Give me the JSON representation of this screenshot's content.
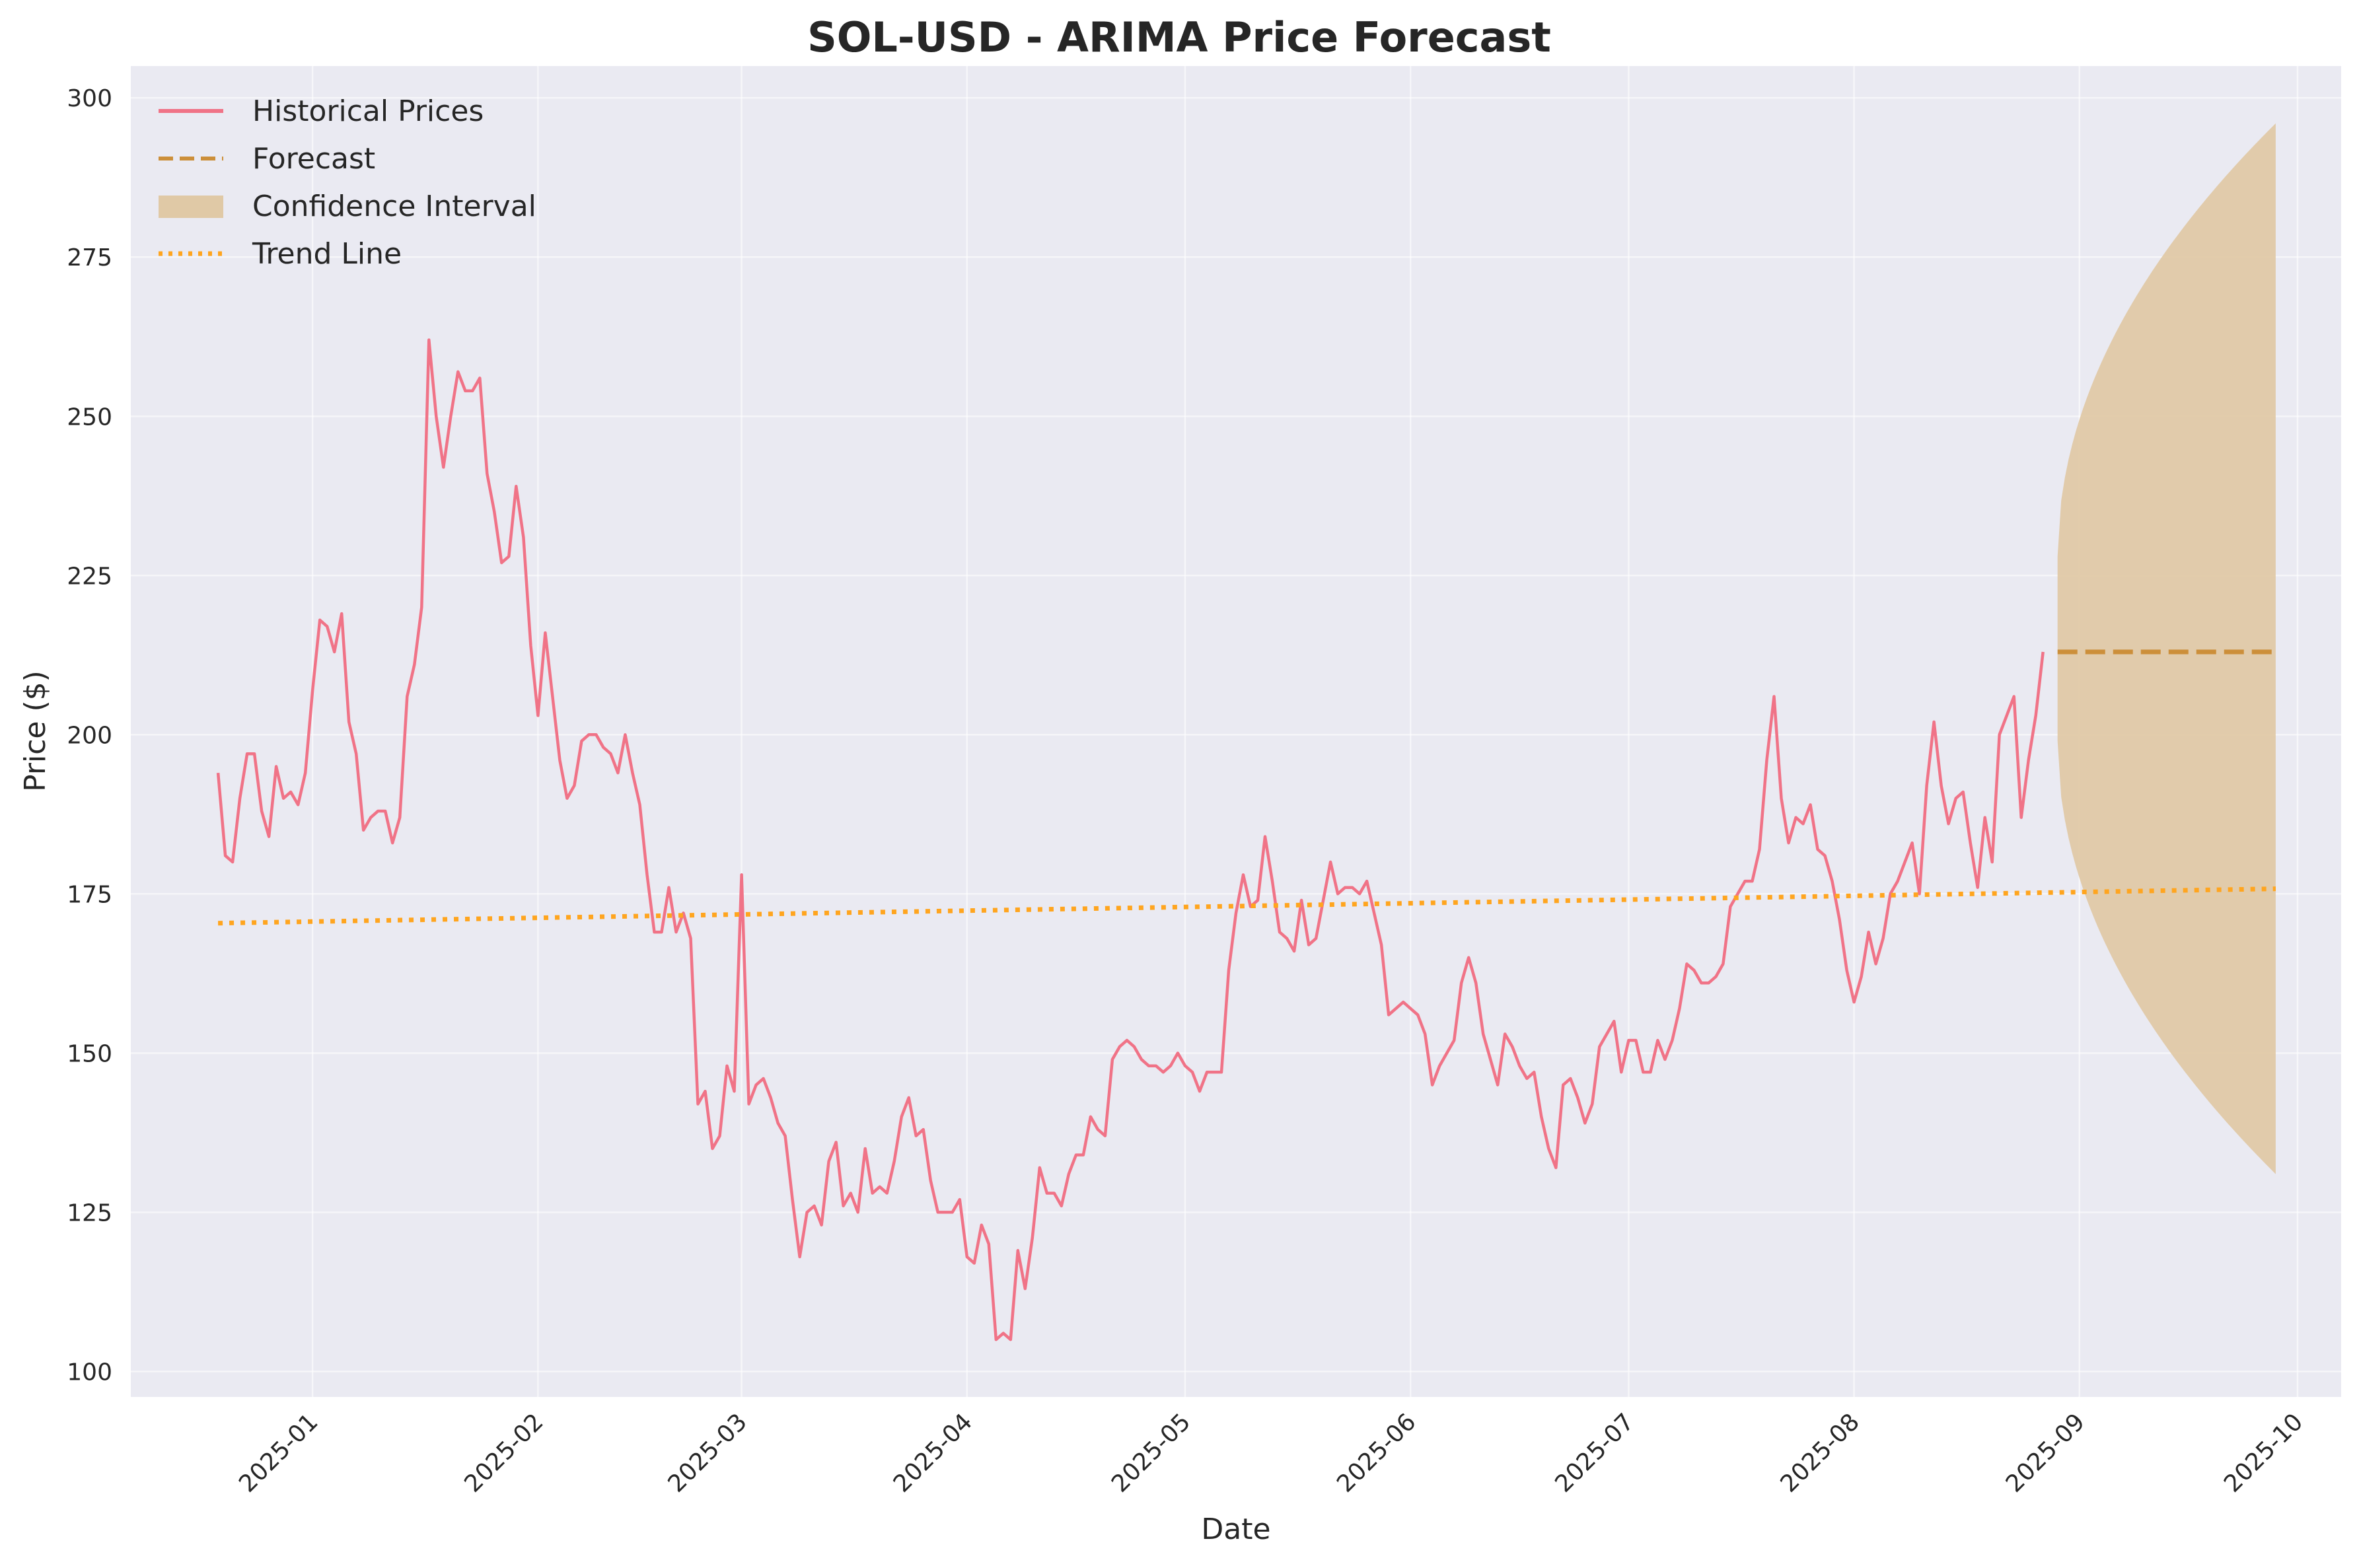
{
  "chart_data": {
    "type": "line",
    "title": "SOL-USD - ARIMA Price Forecast",
    "xlabel": "Date",
    "ylabel": "Price ($)",
    "xlim": [
      "2024-12-07",
      "2025-10-07"
    ],
    "ylim": [
      96,
      305
    ],
    "grid": true,
    "legend_placement": "top-left",
    "x_ticks": [
      "2025-01",
      "2025-02",
      "2025-03",
      "2025-04",
      "2025-05",
      "2025-06",
      "2025-07",
      "2025-08",
      "2025-09",
      "2025-10"
    ],
    "x_tick_dates": [
      "2025-01-01",
      "2025-02-01",
      "2025-03-01",
      "2025-04-01",
      "2025-05-01",
      "2025-06-01",
      "2025-07-01",
      "2025-08-01",
      "2025-09-01",
      "2025-10-01"
    ],
    "y_ticks": [
      100,
      125,
      150,
      175,
      200,
      225,
      250,
      275,
      300
    ],
    "colors": {
      "historical": "#f07387",
      "forecast": "#cc8f3a",
      "confidence": "#e0c9a6",
      "trend": "#ffa51f",
      "background": "#eaeaf2"
    },
    "legend": [
      {
        "label": "Historical Prices",
        "style": "solid-line",
        "color": "#f07387"
      },
      {
        "label": "Forecast",
        "style": "dashed-line",
        "color": "#cc8f3a"
      },
      {
        "label": "Confidence Interval",
        "style": "patch",
        "color": "#e0c9a6"
      },
      {
        "label": "Trend Line",
        "style": "dotted-line",
        "color": "#ffa51f"
      }
    ],
    "series": [
      {
        "name": "Historical Prices",
        "start_date": "2024-12-19",
        "values": [
          194,
          181,
          180,
          190,
          197,
          197,
          188,
          184,
          195,
          190,
          191,
          189,
          194,
          207,
          218,
          217,
          213,
          219,
          202,
          197,
          185,
          187,
          188,
          188,
          183,
          187,
          206,
          211,
          220,
          262,
          250,
          242,
          250,
          257,
          254,
          254,
          256,
          241,
          235,
          227,
          228,
          239,
          231,
          214,
          203,
          216,
          206,
          196,
          190,
          192,
          199,
          200,
          200,
          198,
          197,
          194,
          200,
          194,
          189,
          178,
          169,
          169,
          176,
          169,
          172,
          168,
          142,
          144,
          135,
          137,
          148,
          144,
          178,
          142,
          145,
          146,
          143,
          139,
          137,
          127,
          118,
          125,
          126,
          123,
          133,
          136,
          126,
          128,
          125,
          135,
          128,
          129,
          128,
          133,
          140,
          143,
          137,
          138,
          130,
          125,
          125,
          125,
          127,
          118,
          117,
          123,
          120,
          105,
          106,
          105,
          119,
          113,
          121,
          132,
          128,
          128,
          126,
          131,
          134,
          134,
          140,
          138,
          137,
          149,
          151,
          152,
          151,
          149,
          148,
          148,
          147,
          148,
          150,
          148,
          147,
          144,
          147,
          147,
          147,
          163,
          172,
          178,
          173,
          174,
          184,
          177,
          169,
          168,
          166,
          174,
          167,
          168,
          174,
          180,
          175,
          176,
          176,
          175,
          177,
          172,
          167,
          156,
          157,
          158,
          157,
          156,
          153,
          145,
          148,
          150,
          152,
          161,
          165,
          161,
          153,
          149,
          145,
          153,
          151,
          148,
          146,
          147,
          140,
          135,
          132,
          145,
          146,
          143,
          139,
          142,
          151,
          153,
          155,
          147,
          152,
          152,
          147,
          147,
          152,
          149,
          152,
          157,
          164,
          163,
          161,
          161,
          162,
          164,
          173,
          175,
          177,
          177,
          182,
          196,
          206,
          190,
          183,
          187,
          186,
          189,
          182,
          181,
          177,
          171,
          163,
          158,
          162,
          169,
          164,
          168,
          175,
          177,
          180,
          183,
          175,
          192,
          202,
          192,
          186,
          190,
          191,
          183,
          176,
          187,
          180,
          200,
          203,
          206,
          187,
          196,
          203,
          213
        ]
      },
      {
        "name": "Forecast",
        "x": [
          "2025-08-29",
          "2025-09-28"
        ],
        "values": [
          213,
          213
        ]
      },
      {
        "name": "Confidence Interval",
        "x": [
          "2025-08-29",
          "2025-09-28"
        ],
        "lower_start": 199,
        "upper_start": 228,
        "lower_end": 131,
        "upper_end": 296
      },
      {
        "name": "Trend Line",
        "x": [
          "2024-12-19",
          "2025-09-28"
        ],
        "values": [
          170.4,
          175.8
        ]
      }
    ]
  }
}
